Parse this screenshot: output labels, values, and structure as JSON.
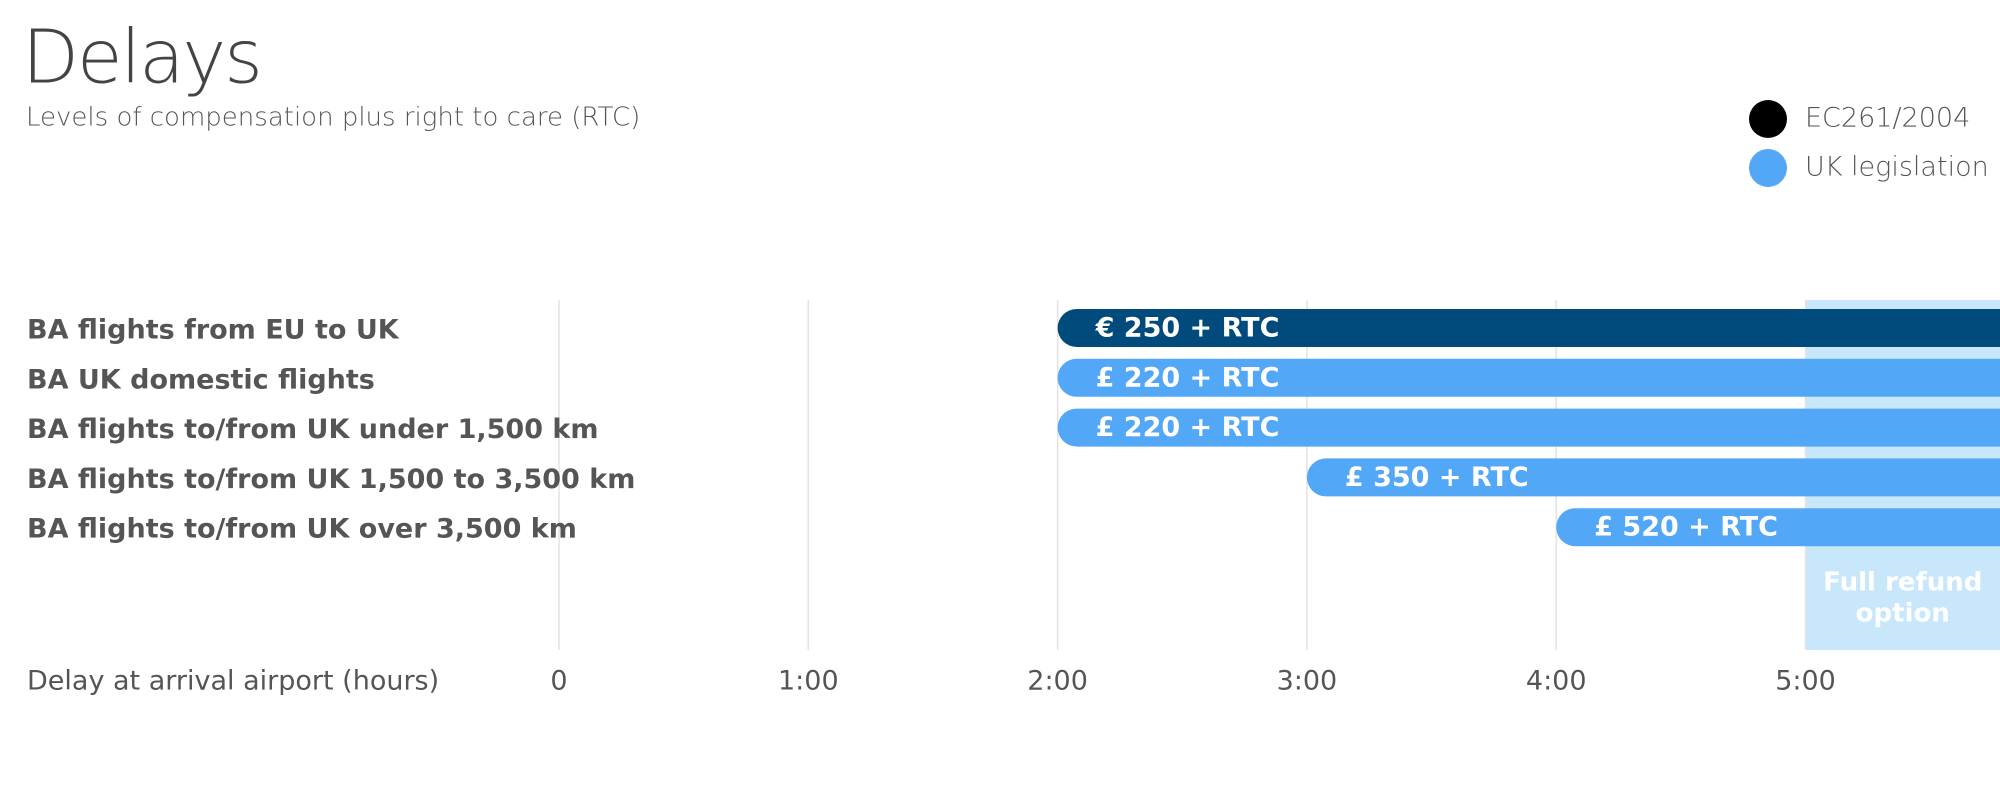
{
  "chart_data": {
    "type": "timeline-bar",
    "title": "Delays",
    "subtitle": "Levels of compensation plus right to care (RTC)",
    "categories": [
      "BA flights from EU to UK",
      "BA UK domestic flights",
      "BA flights to/from UK under 1,500 km",
      "BA flights to/from UK 1,500 to 3,500 km",
      "BA flights to/from UK over 3,500 km"
    ],
    "values": [
      2,
      2,
      2,
      3,
      4
    ],
    "bar_labels": [
      "€ 250 + RTC",
      "£ 220 + RTC",
      "£ 220 + RTC",
      "£ 350 + RTC",
      "£ 520 + RTC"
    ],
    "bar_legend": [
      0,
      1,
      1,
      1,
      1
    ],
    "legend": [
      {
        "name": "EC261/2004",
        "color": "#000000",
        "bar_color": "#004b7c"
      },
      {
        "name": "UK legislation",
        "color": "#52a8f7",
        "bar_color": "#52a8f7"
      }
    ],
    "legend_position": "top-right",
    "annotation": {
      "lines": [
        "Full refund",
        "option"
      ],
      "from": 5,
      "color": "#c9e7fb"
    },
    "xlabel": "Delay at arrival airport (hours)",
    "xlim": [
      0,
      5.78
    ],
    "xticks": [
      0,
      {
        "value": 1,
        "label": "1:00"
      },
      {
        "value": 2,
        "label": "2:00"
      },
      {
        "value": 3,
        "label": "3:00"
      },
      {
        "value": 4,
        "label": "4:00"
      },
      {
        "value": 5,
        "label": "5:00"
      }
    ],
    "grid": true
  }
}
